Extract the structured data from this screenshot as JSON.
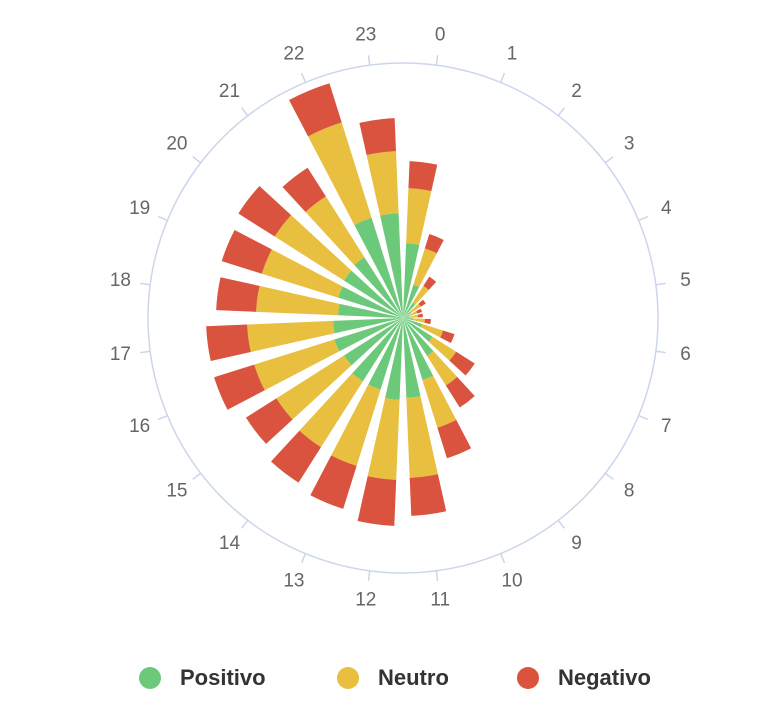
{
  "chart_data": {
    "type": "polar-stacked-bar",
    "categories": [
      "0",
      "1",
      "2",
      "3",
      "4",
      "5",
      "6",
      "7",
      "8",
      "9",
      "10",
      "11",
      "12",
      "13",
      "14",
      "15",
      "16",
      "17",
      "18",
      "19",
      "20",
      "21",
      "22",
      "23"
    ],
    "ylim": [
      0,
      255
    ],
    "series": [
      {
        "name": "Positivo",
        "color": "#6cc97a",
        "values": [
          75,
          35,
          18,
          10,
          7,
          7,
          10,
          20,
          35,
          45,
          65,
          80,
          82,
          75,
          75,
          70,
          72,
          70,
          65,
          68,
          70,
          72,
          105,
          105
        ]
      },
      {
        "name": "Neutro",
        "color": "#e8bf3f",
        "values": [
          55,
          38,
          20,
          11,
          8,
          8,
          12,
          22,
          28,
          35,
          50,
          80,
          80,
          80,
          78,
          80,
          84,
          86,
          82,
          80,
          82,
          72,
          100,
          62
        ]
      },
      {
        "name": "Negativo",
        "color": "#d9533f",
        "values": [
          27,
          15,
          11,
          6,
          5,
          5,
          6,
          12,
          22,
          26,
          32,
          38,
          46,
          45,
          42,
          36,
          42,
          41,
          40,
          42,
          43,
          34,
          41,
          33
        ]
      }
    ]
  }
}
